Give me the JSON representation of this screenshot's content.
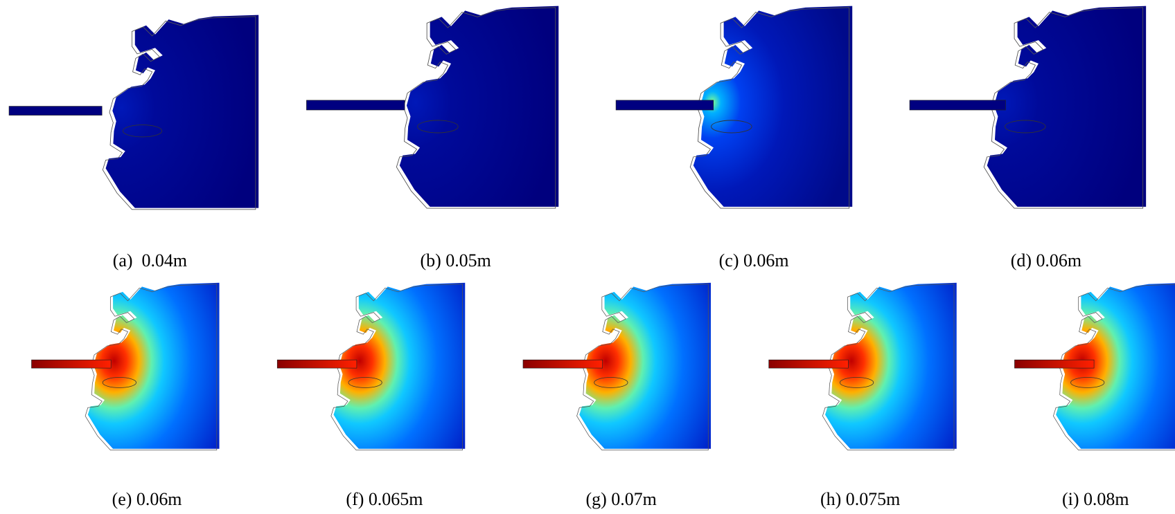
{
  "panels": [
    {
      "label": "(a)  0.04m"
    },
    {
      "label": "(b) 0.05m"
    },
    {
      "label": "(c) 0.06m"
    },
    {
      "label": "(d) 0.06m"
    },
    {
      "label": "(e) 0.06m"
    },
    {
      "label": "(f) 0.065m"
    },
    {
      "label": "(g) 0.07m"
    },
    {
      "label": "(h) 0.075m"
    },
    {
      "label": "(i) 0.08m"
    }
  ]
}
